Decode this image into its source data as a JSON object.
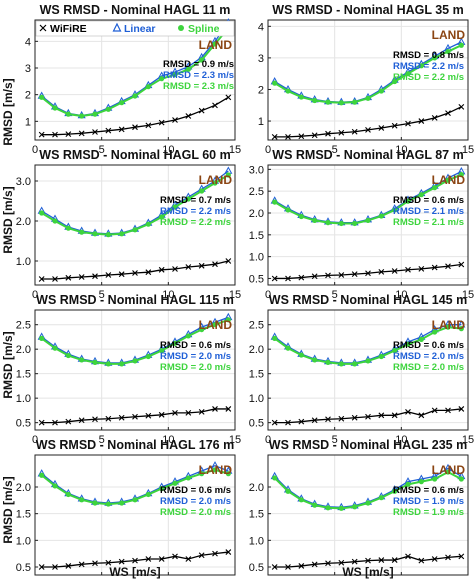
{
  "colors": {
    "wifire": "#000000",
    "linear": "#1f5fd6",
    "spline": "#3dd43d",
    "land": "#8b4513"
  },
  "legend": {
    "labels": [
      "WiFiRE",
      "Linear",
      "Spline"
    ]
  },
  "axes": {
    "xlabel": "WS [m/s]",
    "ylabel": "RMSD [m/s]"
  },
  "chart_data": [
    {
      "type": "line",
      "title": "WS RMSD - Nominal HAGL 11 m",
      "xlabel": "",
      "ylabel": "",
      "xlim": [
        0,
        15
      ],
      "ylim": [
        0.3,
        4.8
      ],
      "xticks": [
        0,
        5,
        10,
        15
      ],
      "yticks": [
        1,
        2,
        3,
        4
      ],
      "xtick_labels": [
        "0",
        "5",
        "10",
        "15"
      ],
      "ytick_labels": [
        "1",
        "2",
        "3",
        "4"
      ],
      "annotation": "LAND",
      "rmsd_labels": [
        "RMSD = 0.9 m/s",
        "RMSD = 2.3 m/s",
        "RMSD = 2.3 m/s"
      ],
      "x": [
        0.5,
        1.5,
        2.5,
        3.5,
        4.5,
        5.5,
        6.5,
        7.5,
        8.5,
        9.5,
        10.5,
        11.5,
        12.5,
        13.5,
        14.5
      ],
      "series": [
        {
          "name": "WiFiRE",
          "values": [
            0.5,
            0.5,
            0.52,
            0.55,
            0.6,
            0.65,
            0.7,
            0.78,
            0.85,
            0.95,
            1.05,
            1.2,
            1.4,
            1.6,
            1.9
          ]
        },
        {
          "name": "Linear",
          "values": [
            1.95,
            1.55,
            1.3,
            1.22,
            1.3,
            1.5,
            1.75,
            2.0,
            2.35,
            2.7,
            2.85,
            3.05,
            3.4,
            4.0,
            4.7
          ]
        },
        {
          "name": "Spline",
          "values": [
            1.9,
            1.5,
            1.27,
            1.2,
            1.27,
            1.45,
            1.7,
            1.95,
            2.3,
            2.6,
            2.75,
            2.95,
            3.3,
            3.9,
            4.5
          ]
        }
      ]
    },
    {
      "type": "line",
      "title": "WS RMSD - Nominal HAGL 35 m",
      "xlabel": "",
      "ylabel": "",
      "xlim": [
        0,
        15
      ],
      "ylim": [
        0.4,
        4.2
      ],
      "xticks": [
        0,
        5,
        10,
        15
      ],
      "yticks": [
        1,
        2,
        3,
        4
      ],
      "xtick_labels": [
        "0",
        "5",
        "10",
        "15"
      ],
      "ytick_labels": [
        "1",
        "2",
        "3",
        "4"
      ],
      "annotation": "LAND",
      "rmsd_labels": [
        "RMSD = 0.8 m/s",
        "RMSD = 2.2 m/s",
        "RMSD = 2.2 m/s"
      ],
      "x": [
        0.5,
        1.5,
        2.5,
        3.5,
        4.5,
        5.5,
        6.5,
        7.5,
        8.5,
        9.5,
        10.5,
        11.5,
        12.5,
        13.5,
        14.5
      ],
      "series": [
        {
          "name": "WiFiRE",
          "values": [
            0.5,
            0.5,
            0.52,
            0.55,
            0.6,
            0.63,
            0.66,
            0.72,
            0.78,
            0.85,
            0.92,
            1.0,
            1.1,
            1.25,
            1.45
          ]
        },
        {
          "name": "Linear",
          "values": [
            2.25,
            2.0,
            1.8,
            1.68,
            1.62,
            1.6,
            1.62,
            1.75,
            2.0,
            2.3,
            2.55,
            2.8,
            3.05,
            3.3,
            3.5
          ]
        },
        {
          "name": "Spline",
          "values": [
            2.2,
            1.95,
            1.76,
            1.65,
            1.6,
            1.58,
            1.6,
            1.72,
            1.95,
            2.25,
            2.5,
            2.75,
            3.0,
            3.2,
            3.4
          ]
        }
      ]
    },
    {
      "type": "line",
      "title": "WS RMSD - Nominal HAGL 60 m",
      "xlabel": "",
      "ylabel": "",
      "xlim": [
        0,
        15
      ],
      "ylim": [
        0.4,
        3.4
      ],
      "xticks": [
        0,
        5,
        10,
        15
      ],
      "yticks": [
        1,
        2,
        3
      ],
      "xtick_labels": [
        "0",
        "5",
        "10",
        "15"
      ],
      "ytick_labels": [
        "1.0",
        "2.0",
        "3.0"
      ],
      "annotation": "LAND",
      "rmsd_labels": [
        "RMSD = 0.7 m/s",
        "RMSD = 2.2 m/s",
        "RMSD = 2.2 m/s"
      ],
      "x": [
        0.5,
        1.5,
        2.5,
        3.5,
        4.5,
        5.5,
        6.5,
        7.5,
        8.5,
        9.5,
        10.5,
        11.5,
        12.5,
        13.5,
        14.5
      ],
      "series": [
        {
          "name": "WiFiRE",
          "values": [
            0.55,
            0.55,
            0.58,
            0.6,
            0.62,
            0.65,
            0.67,
            0.7,
            0.72,
            0.78,
            0.8,
            0.85,
            0.88,
            0.92,
            1.0
          ]
        },
        {
          "name": "Linear",
          "values": [
            2.25,
            2.05,
            1.85,
            1.75,
            1.7,
            1.68,
            1.7,
            1.8,
            1.95,
            2.15,
            2.4,
            2.6,
            2.8,
            3.0,
            3.25
          ]
        },
        {
          "name": "Spline",
          "values": [
            2.2,
            2.0,
            1.82,
            1.72,
            1.68,
            1.66,
            1.68,
            1.78,
            1.92,
            2.1,
            2.35,
            2.55,
            2.75,
            2.95,
            3.15
          ]
        }
      ]
    },
    {
      "type": "line",
      "title": "WS RMSD - Nominal HAGL 87 m",
      "xlabel": "",
      "ylabel": "",
      "xlim": [
        0,
        15
      ],
      "ylim": [
        0.35,
        3.1
      ],
      "xticks": [
        0,
        5,
        10,
        15
      ],
      "yticks": [
        0.5,
        1,
        1.5,
        2,
        2.5,
        3
      ],
      "xtick_labels": [
        "0",
        "5",
        "10",
        "15"
      ],
      "ytick_labels": [
        "0.5",
        "1.0",
        "1.5",
        "2.0",
        "2.5",
        "3.0"
      ],
      "annotation": "LAND",
      "rmsd_labels": [
        "RMSD = 0.6 m/s",
        "RMSD = 2.1 m/s",
        "RMSD = 2.1 m/s"
      ],
      "x": [
        0.5,
        1.5,
        2.5,
        3.5,
        4.5,
        5.5,
        6.5,
        7.5,
        8.5,
        9.5,
        10.5,
        11.5,
        12.5,
        13.5,
        14.5
      ],
      "series": [
        {
          "name": "WiFiRE",
          "values": [
            0.5,
            0.5,
            0.52,
            0.55,
            0.57,
            0.58,
            0.6,
            0.62,
            0.65,
            0.67,
            0.7,
            0.72,
            0.75,
            0.78,
            0.82
          ]
        },
        {
          "name": "Linear",
          "values": [
            2.28,
            2.1,
            1.95,
            1.85,
            1.8,
            1.78,
            1.78,
            1.85,
            1.95,
            2.1,
            2.3,
            2.45,
            2.62,
            2.8,
            2.95
          ]
        },
        {
          "name": "Spline",
          "values": [
            2.25,
            2.07,
            1.92,
            1.83,
            1.78,
            1.76,
            1.76,
            1.83,
            1.93,
            2.07,
            2.27,
            2.42,
            2.58,
            2.75,
            2.88
          ]
        }
      ]
    },
    {
      "type": "line",
      "title": "WS RMSD - Nominal HAGL 115 m",
      "xlabel": "",
      "ylabel": "",
      "xlim": [
        0,
        15
      ],
      "ylim": [
        0.35,
        2.8
      ],
      "xticks": [
        0,
        5,
        10,
        15
      ],
      "yticks": [
        0.5,
        1,
        1.5,
        2,
        2.5
      ],
      "xtick_labels": [
        "0",
        "5",
        "10",
        "15"
      ],
      "ytick_labels": [
        "0.5",
        "1.0",
        "1.5",
        "2.0",
        "2.5"
      ],
      "annotation": "LAND",
      "rmsd_labels": [
        "RMSD = 0.6 m/s",
        "RMSD = 2.0 m/s",
        "RMSD = 2.0 m/s"
      ],
      "x": [
        0.5,
        1.5,
        2.5,
        3.5,
        4.5,
        5.5,
        6.5,
        7.5,
        8.5,
        9.5,
        10.5,
        11.5,
        12.5,
        13.5,
        14.5
      ],
      "series": [
        {
          "name": "WiFiRE",
          "values": [
            0.5,
            0.5,
            0.52,
            0.55,
            0.57,
            0.58,
            0.6,
            0.62,
            0.64,
            0.66,
            0.7,
            0.7,
            0.72,
            0.78,
            0.78
          ]
        },
        {
          "name": "Linear",
          "values": [
            2.25,
            2.05,
            1.9,
            1.8,
            1.75,
            1.72,
            1.72,
            1.78,
            1.88,
            2.0,
            2.15,
            2.3,
            2.45,
            2.55,
            2.65
          ]
        },
        {
          "name": "Spline",
          "values": [
            2.22,
            2.02,
            1.87,
            1.78,
            1.73,
            1.7,
            1.7,
            1.76,
            1.85,
            1.97,
            2.12,
            2.27,
            2.4,
            2.5,
            2.6
          ]
        }
      ]
    },
    {
      "type": "line",
      "title": "WS RMSD - Nominal HAGL 145 m",
      "xlabel": "",
      "ylabel": "",
      "xlim": [
        0,
        15
      ],
      "ylim": [
        0.35,
        2.8
      ],
      "xticks": [
        0,
        5,
        10,
        15
      ],
      "yticks": [
        0.5,
        1,
        1.5,
        2,
        2.5
      ],
      "xtick_labels": [
        "0",
        "5",
        "10",
        "15"
      ],
      "ytick_labels": [
        "0.5",
        "1.0",
        "1.5",
        "2.0",
        "2.5"
      ],
      "annotation": "LAND",
      "rmsd_labels": [
        "RMSD = 0.6 m/s",
        "RMSD = 2.0 m/s",
        "RMSD = 2.0 m/s"
      ],
      "x": [
        0.5,
        1.5,
        2.5,
        3.5,
        4.5,
        5.5,
        6.5,
        7.5,
        8.5,
        9.5,
        10.5,
        11.5,
        12.5,
        13.5,
        14.5
      ],
      "series": [
        {
          "name": "WiFiRE",
          "values": [
            0.5,
            0.5,
            0.52,
            0.55,
            0.57,
            0.58,
            0.6,
            0.62,
            0.65,
            0.65,
            0.72,
            0.65,
            0.75,
            0.75,
            0.78
          ]
        },
        {
          "name": "Linear",
          "values": [
            2.25,
            2.05,
            1.9,
            1.8,
            1.75,
            1.72,
            1.72,
            1.78,
            1.88,
            2.0,
            2.15,
            2.25,
            2.4,
            2.5,
            2.5
          ]
        },
        {
          "name": "Spline",
          "values": [
            2.22,
            2.02,
            1.88,
            1.78,
            1.73,
            1.7,
            1.7,
            1.76,
            1.85,
            1.97,
            2.1,
            2.2,
            2.35,
            2.45,
            2.42
          ]
        }
      ]
    },
    {
      "type": "line",
      "title": "WS RMSD - Nominal HAGL 176 m",
      "xlabel": "",
      "ylabel": "",
      "xlim": [
        0,
        15
      ],
      "ylim": [
        0.35,
        2.6
      ],
      "xticks": [
        0,
        5,
        10,
        15
      ],
      "yticks": [
        0.5,
        1,
        1.5,
        2
      ],
      "xtick_labels": [
        "0",
        "5",
        "10",
        "15"
      ],
      "ytick_labels": [
        "0.5",
        "1.0",
        "1.5",
        "2.0"
      ],
      "annotation": "LAND",
      "rmsd_labels": [
        "RMSD = 0.6 m/s",
        "RMSD = 2.0 m/s",
        "RMSD = 2.0 m/s"
      ],
      "x": [
        0.5,
        1.5,
        2.5,
        3.5,
        4.5,
        5.5,
        6.5,
        7.5,
        8.5,
        9.5,
        10.5,
        11.5,
        12.5,
        13.5,
        14.5
      ],
      "series": [
        {
          "name": "WiFiRE",
          "values": [
            0.5,
            0.5,
            0.52,
            0.55,
            0.57,
            0.58,
            0.6,
            0.62,
            0.65,
            0.65,
            0.7,
            0.65,
            0.72,
            0.75,
            0.78
          ]
        },
        {
          "name": "Linear",
          "values": [
            2.25,
            2.05,
            1.88,
            1.78,
            1.72,
            1.7,
            1.72,
            1.78,
            1.88,
            2.0,
            2.1,
            2.2,
            2.3,
            2.4,
            2.3
          ]
        },
        {
          "name": "Spline",
          "values": [
            2.22,
            2.02,
            1.86,
            1.76,
            1.7,
            1.68,
            1.7,
            1.76,
            1.86,
            1.97,
            2.07,
            2.17,
            2.25,
            2.32,
            2.25
          ]
        }
      ]
    },
    {
      "type": "line",
      "title": "WS RMSD - Nominal HAGL 235 m",
      "xlabel": "",
      "ylabel": "",
      "xlim": [
        0,
        15
      ],
      "ylim": [
        0.35,
        2.6
      ],
      "xticks": [
        0,
        5,
        10,
        15
      ],
      "yticks": [
        0.5,
        1,
        1.5,
        2
      ],
      "xtick_labels": [
        "0",
        "5",
        "10",
        "15"
      ],
      "ytick_labels": [
        "0.5",
        "1.0",
        "1.5",
        "2.0"
      ],
      "annotation": "LAND",
      "rmsd_labels": [
        "RMSD = 0.6 m/s",
        "RMSD = 1.9 m/s",
        "RMSD = 1.9 m/s"
      ],
      "x": [
        0.5,
        1.5,
        2.5,
        3.5,
        4.5,
        5.5,
        6.5,
        7.5,
        8.5,
        9.5,
        10.5,
        11.5,
        12.5,
        13.5,
        14.5
      ],
      "series": [
        {
          "name": "WiFiRE",
          "values": [
            0.5,
            0.5,
            0.52,
            0.55,
            0.57,
            0.58,
            0.6,
            0.62,
            0.63,
            0.63,
            0.7,
            0.62,
            0.65,
            0.68,
            0.7
          ]
        },
        {
          "name": "Linear",
          "values": [
            2.2,
            1.95,
            1.78,
            1.68,
            1.63,
            1.62,
            1.65,
            1.72,
            1.82,
            1.95,
            2.1,
            2.15,
            2.2,
            2.35,
            2.2
          ]
        },
        {
          "name": "Spline",
          "values": [
            2.17,
            1.92,
            1.76,
            1.66,
            1.61,
            1.6,
            1.63,
            1.7,
            1.8,
            1.92,
            2.05,
            2.1,
            2.15,
            2.28,
            2.15
          ]
        }
      ]
    }
  ]
}
